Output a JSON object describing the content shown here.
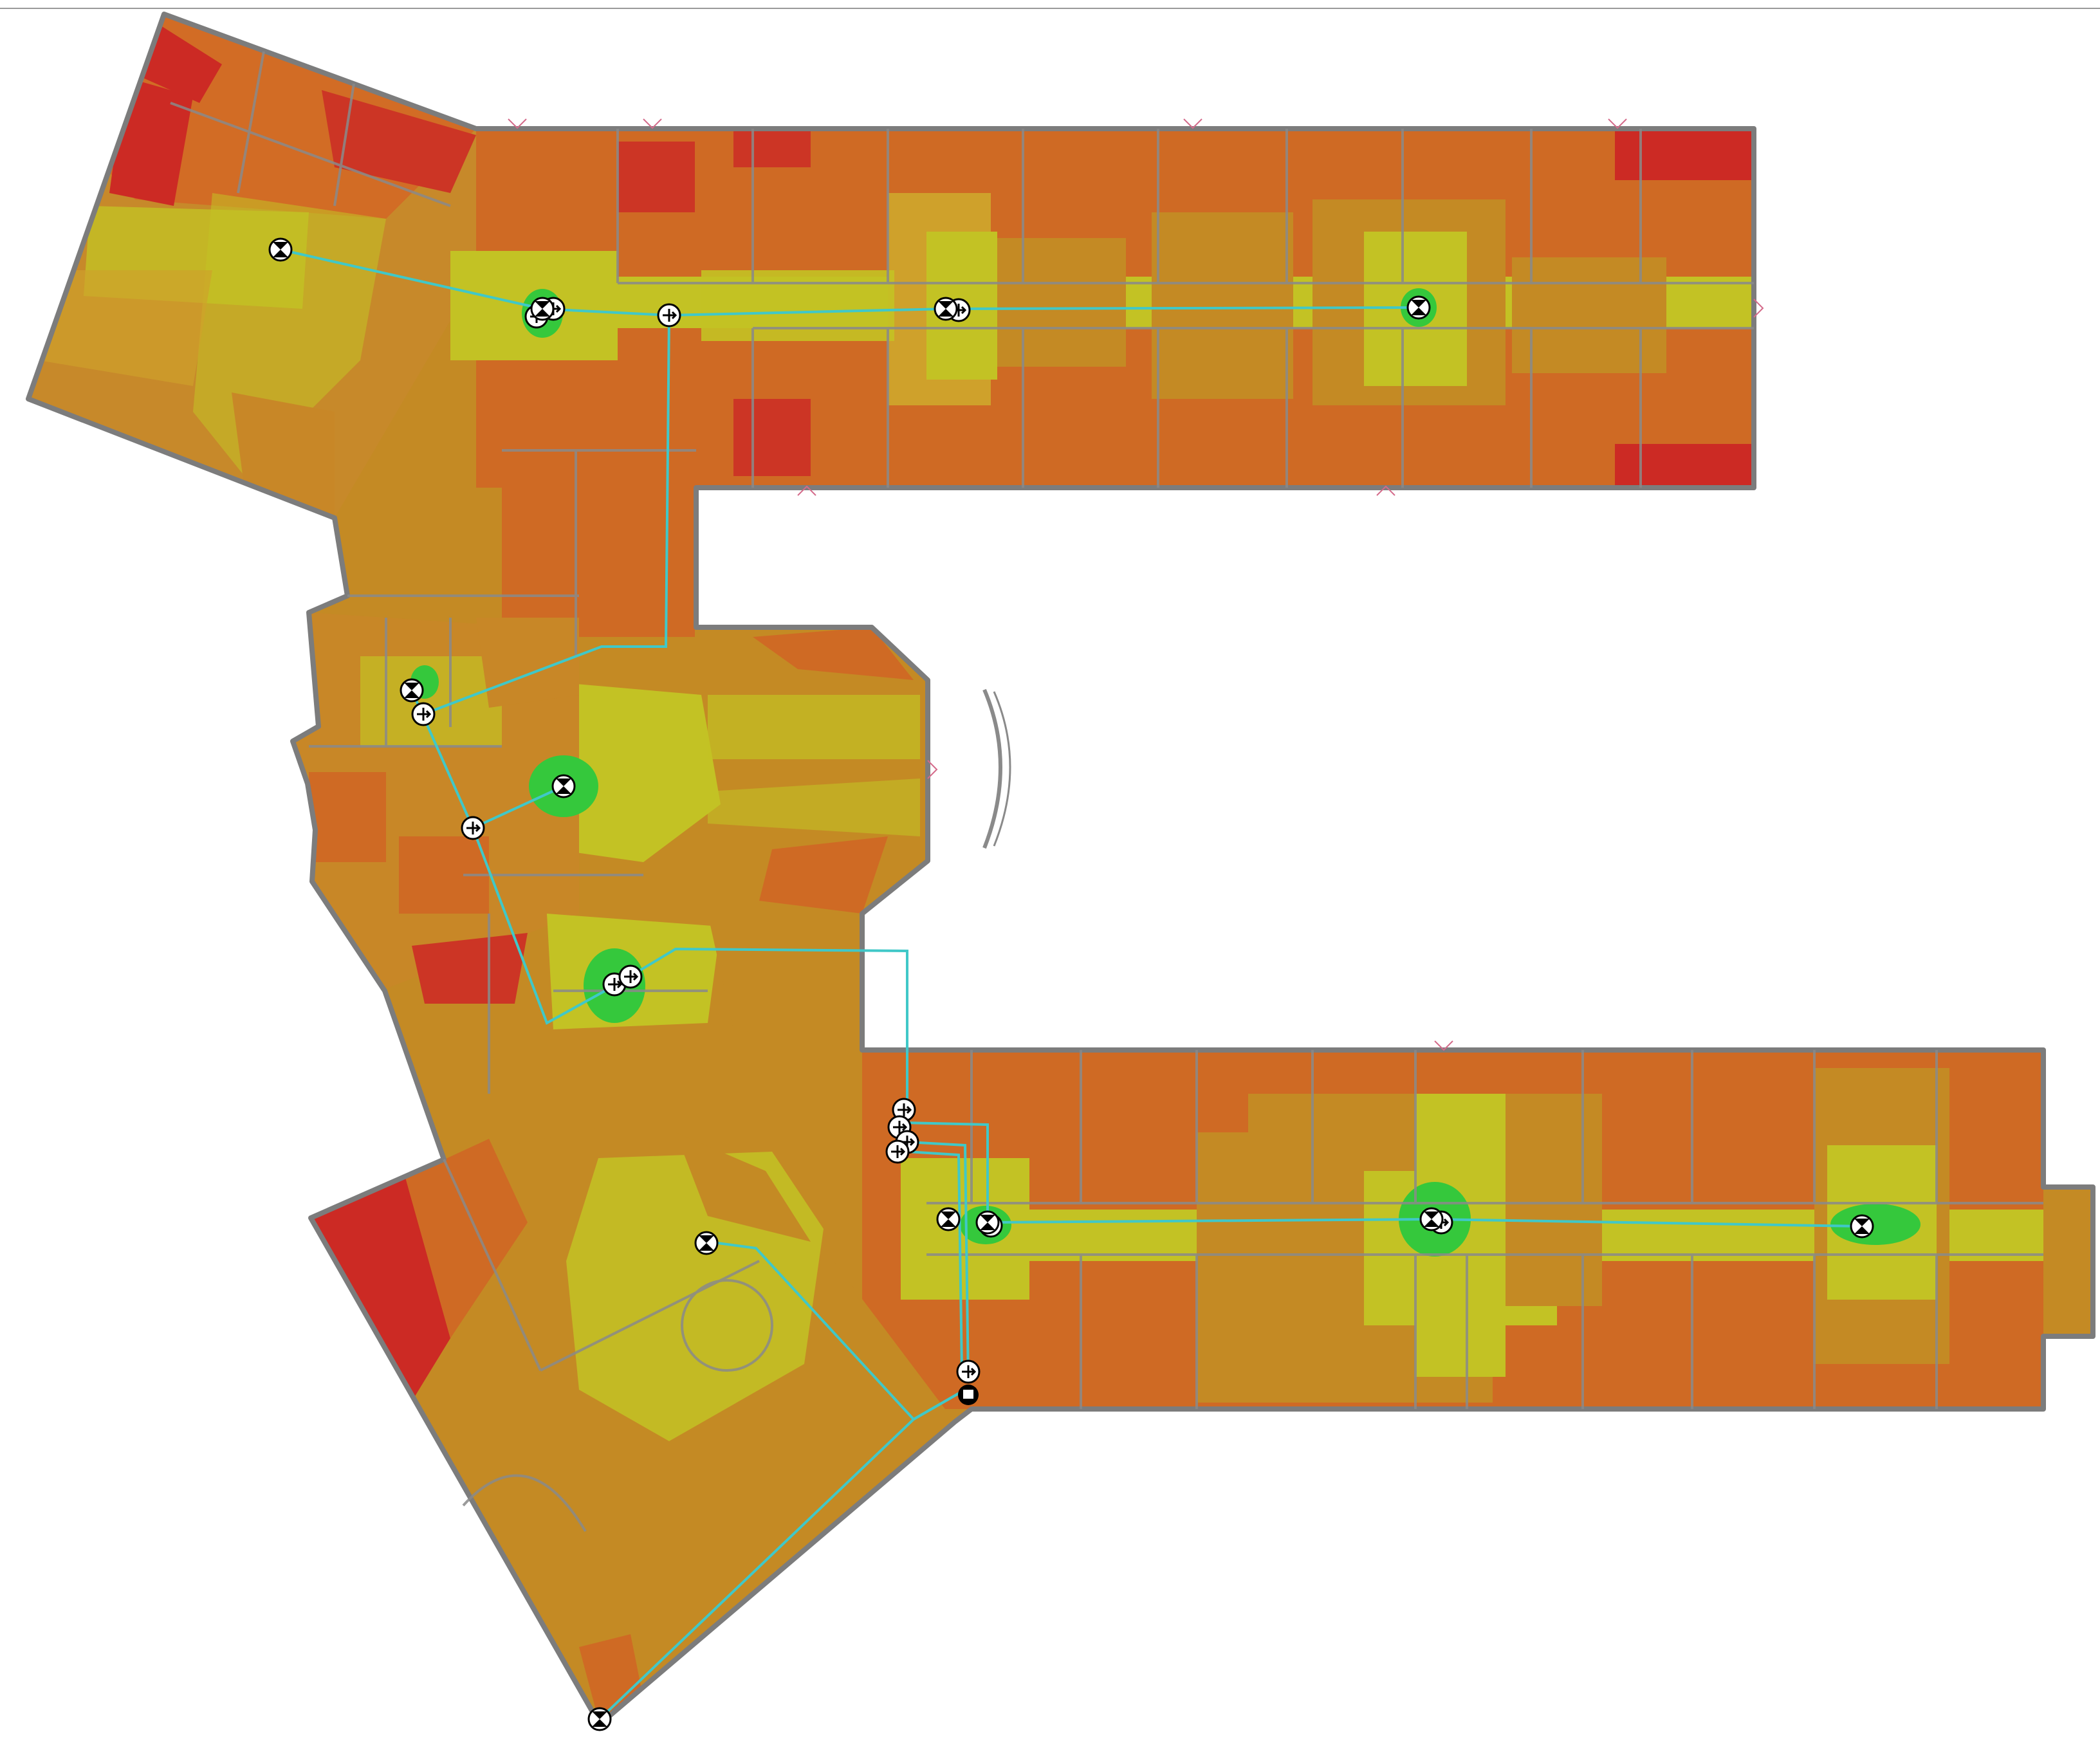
{
  "view": {
    "type": "wifi-signal-heatmap-floorplan",
    "legend": "none"
  },
  "colors": {
    "strong": "#35c83c",
    "good": "#c3c224",
    "fair": "#c48a24",
    "weak": "#cf6a24",
    "poor": "#cc2a24",
    "wall": "#8a8a8a",
    "cable": "#40c8c8",
    "floor_outline": "#7c7c7c",
    "background": "#ffffff"
  },
  "icons": {
    "access_point": "access-point-icon",
    "switch": "network-switch-icon",
    "controller": "controller-icon",
    "door": "door-swing-icon"
  },
  "access_points": {
    "count": 12,
    "models": [
      "omni-access-point"
    ]
  },
  "switches": {
    "count": 14
  },
  "controllers": {
    "count": 1
  }
}
